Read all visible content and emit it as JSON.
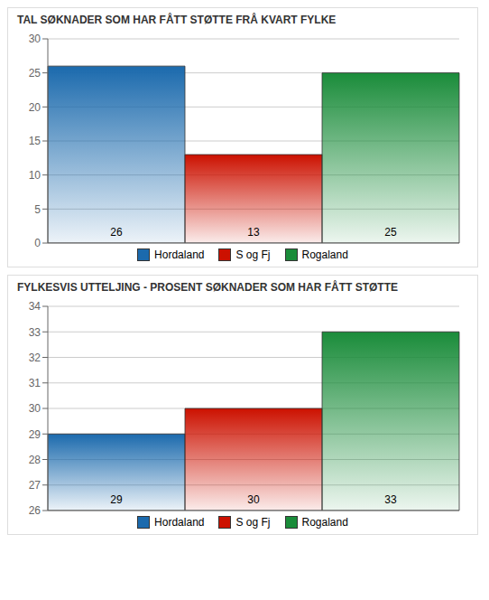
{
  "chart_data": [
    {
      "type": "bar",
      "title": "TAL SØKNADER SOM HAR FÅTT STØTTE FRÅ KVART FYLKE",
      "categories": [
        "Hordaland",
        "S og Fj",
        "Rogaland"
      ],
      "values": [
        26,
        13,
        25
      ],
      "colors": [
        "#1b6aad",
        "#cc1100",
        "#1a8c3a"
      ],
      "ylim": [
        0,
        30
      ],
      "yticks": [
        0,
        5,
        10,
        15,
        20,
        25,
        30
      ],
      "grid": true,
      "legend": "bottom",
      "data_labels": true,
      "tick_labels": "y"
    },
    {
      "type": "bar",
      "title": "FYLKESVIS UTTELJING - PROSENT SØKNADER SOM HAR FÅTT STØTTE",
      "categories": [
        "Hordaland",
        "S og Fj",
        "Rogaland"
      ],
      "values": [
        29,
        30,
        33
      ],
      "colors": [
        "#1b6aad",
        "#cc1100",
        "#1a8c3a"
      ],
      "ylim": [
        26,
        34
      ],
      "yticks": [
        26,
        27,
        28,
        29,
        30,
        31,
        32,
        33,
        34
      ],
      "grid": true,
      "legend": "bottom",
      "data_labels": true,
      "tick_labels": "y"
    }
  ]
}
